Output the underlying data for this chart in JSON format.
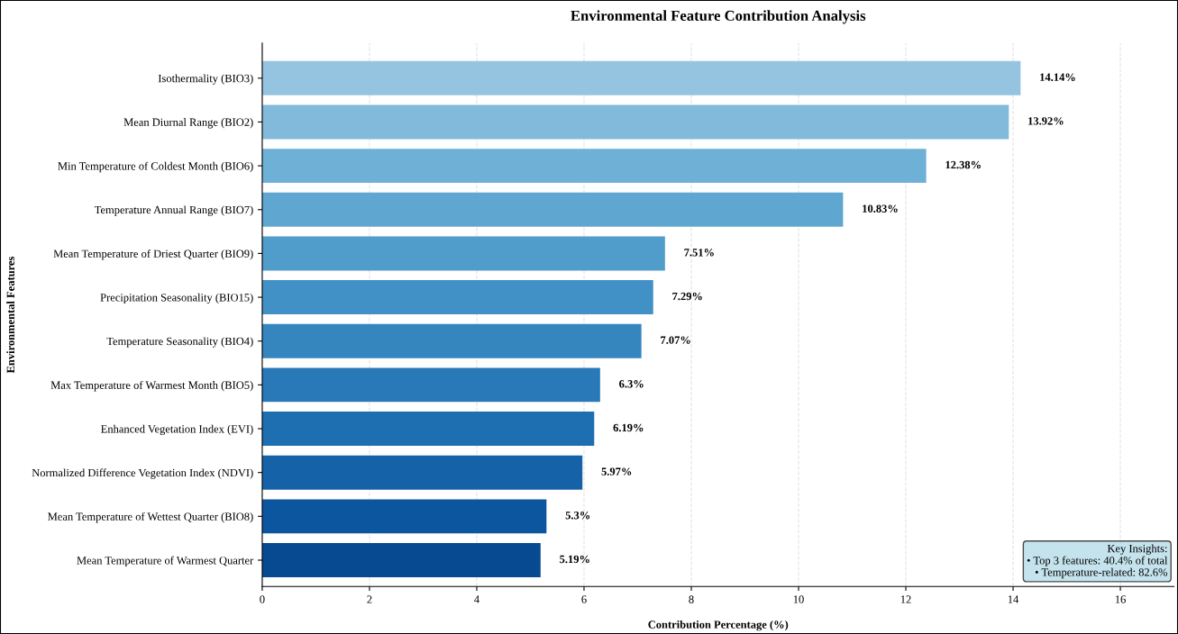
{
  "chart_data": {
    "type": "bar",
    "orientation": "horizontal",
    "title": "Environmental Feature Contribution Analysis",
    "xlabel": "Contribution Percentage (%)",
    "ylabel": "Environmental Features",
    "categories": [
      "Isothermality (BIO3)",
      "Mean Diurnal Range (BIO2)",
      "Min Temperature of Coldest Month (BIO6)",
      "Temperature Annual Range (BIO7)",
      "Mean Temperature of Driest Quarter (BIO9)",
      "Precipitation Seasonality (BIO15)",
      "Temperature Seasonality (BIO4)",
      "Max Temperature of Warmest Month (BIO5)",
      "Enhanced Vegetation Index (EVI)",
      "Normalized Difference Vegetation Index (NDVI)",
      "Mean Temperature of Wettest Quarter (BIO8)",
      "Mean Temperature of Warmest Quarter"
    ],
    "values": [
      14.14,
      13.92,
      12.38,
      10.83,
      7.51,
      7.29,
      7.07,
      6.3,
      6.19,
      5.97,
      5.3,
      5.19
    ],
    "value_labels": [
      "14.14%",
      "13.92%",
      "12.38%",
      "10.83%",
      "7.51%",
      "7.29%",
      "7.07%",
      "6.3%",
      "6.19%",
      "5.97%",
      "5.3%",
      "5.19%"
    ],
    "colors": [
      "#94c4df",
      "#81badb",
      "#6fb0d7",
      "#5fa6d1",
      "#509ccb",
      "#4291c6",
      "#3585bf",
      "#2979b9",
      "#1e6eb2",
      "#1562a9",
      "#0c56a0",
      "#084a92"
    ],
    "xlim": [
      0,
      17
    ],
    "xticks": [
      0,
      2,
      4,
      6,
      8,
      10,
      12,
      14,
      16
    ],
    "grid": "x",
    "legend": false,
    "annotations": [
      "Key Insights:\n• Top 3 features: 40.4% of total\n• Temperature-related: 82.6%"
    ]
  }
}
